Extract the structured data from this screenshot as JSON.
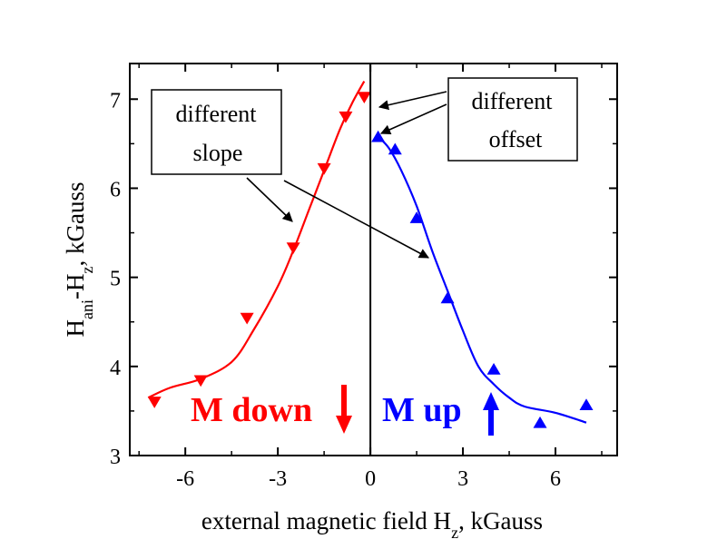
{
  "chart_data": {
    "type": "scatter",
    "title": "",
    "xlabel": "external magnetic field H_z, kGauss",
    "ylabel": "H_ani-H_z, kGauss",
    "xlim": [
      -7.8,
      8.0
    ],
    "ylim": [
      3,
      7.4
    ],
    "xticks": [
      -6,
      -3,
      0,
      3,
      6
    ],
    "yticks": [
      3,
      4,
      5,
      6,
      7
    ],
    "xtick_labels": [
      "-6",
      "-3",
      "0",
      "3",
      "6"
    ],
    "ytick_labels": [
      "3",
      "4",
      "5",
      "6",
      "7"
    ],
    "grid": false,
    "series": [
      {
        "name": "M down",
        "color": "#ff0000",
        "marker": "triangle-down",
        "x": [
          -7.0,
          -5.5,
          -4.0,
          -2.5,
          -1.5,
          -0.8,
          -0.2
        ],
        "y": [
          3.6,
          3.84,
          4.54,
          5.33,
          6.22,
          6.8,
          7.02
        ],
        "fit_x": [
          -7.2,
          -6.5,
          -5.5,
          -4.5,
          -3.8,
          -3.0,
          -2.5,
          -2.0,
          -1.5,
          -1.0,
          -0.6,
          -0.2
        ],
        "fit_y": [
          3.65,
          3.76,
          3.86,
          4.05,
          4.4,
          4.9,
          5.3,
          5.75,
          6.2,
          6.65,
          6.95,
          7.2
        ]
      },
      {
        "name": "M up",
        "color": "#0000ff",
        "marker": "triangle-up",
        "x": [
          0.25,
          0.8,
          1.5,
          2.5,
          4.0,
          5.5,
          7.0
        ],
        "y": [
          6.58,
          6.44,
          5.67,
          4.77,
          3.97,
          3.37,
          3.57
        ],
        "fit_x": [
          0.25,
          0.6,
          1.0,
          1.5,
          2.0,
          2.5,
          3.0,
          3.5,
          4.0,
          4.5,
          5.0,
          6.0,
          7.0
        ],
        "fit_y": [
          6.58,
          6.45,
          6.2,
          5.8,
          5.3,
          4.85,
          4.4,
          4.0,
          3.8,
          3.65,
          3.55,
          3.48,
          3.37
        ]
      }
    ],
    "annotations": {
      "slope_line1": "different",
      "slope_line2": "slope",
      "offset_line1": "different",
      "offset_line2": "offset",
      "label_down": "M down",
      "label_up": "M up"
    }
  }
}
